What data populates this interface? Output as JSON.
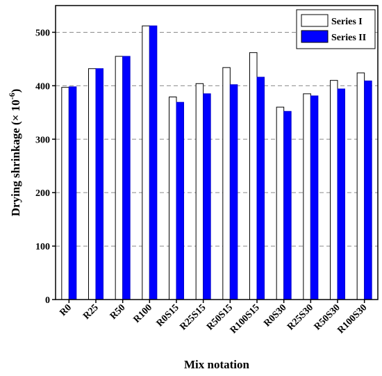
{
  "chart_data": {
    "type": "bar",
    "title": "",
    "xlabel": "Mix notation",
    "ylabel": "Drying shrinkage (× 10",
    "ylabel_superscript": "-6",
    "ylabel_suffix": ")",
    "ylim": [
      0,
      550
    ],
    "yticks": [
      0,
      100,
      200,
      300,
      400,
      500
    ],
    "grid": "dashed horizontal at 100, 200, 300, 400, 500",
    "legend_position": "top-right",
    "categories": [
      "R0",
      "R25",
      "R50",
      "R100",
      "R0S15",
      "R25S15",
      "R50S15",
      "R100S15",
      "R0S30",
      "R25S30",
      "R50S30",
      "R100S30"
    ],
    "series": [
      {
        "name": "Series I",
        "color": "#ffffff",
        "values": [
          397,
          432,
          455,
          512,
          379,
          404,
          434,
          462,
          360,
          385,
          410,
          424
        ]
      },
      {
        "name": "Series II",
        "color": "#0000ff",
        "values": [
          398,
          432,
          455,
          512,
          369,
          385,
          402,
          416,
          352,
          381,
          394,
          409
        ]
      }
    ]
  }
}
